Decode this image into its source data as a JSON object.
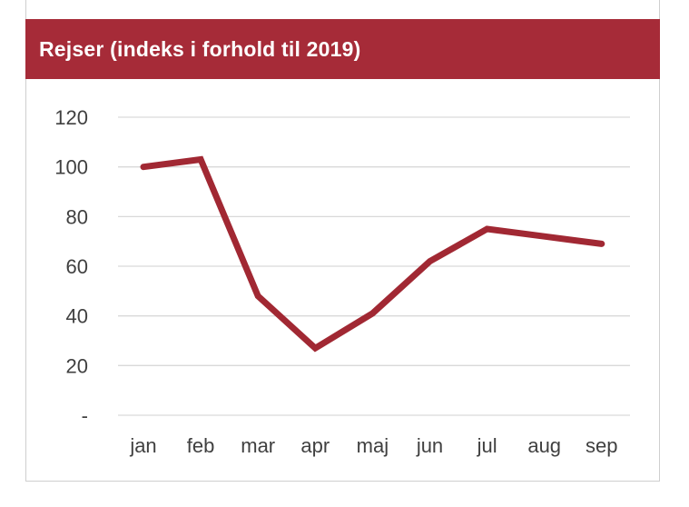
{
  "chart_data": {
    "type": "line",
    "title": "Rejser (indeks i forhold til 2019)",
    "categories": [
      "jan",
      "feb",
      "mar",
      "apr",
      "maj",
      "jun",
      "jul",
      "aug",
      "sep"
    ],
    "values": [
      100,
      103,
      48,
      27,
      41,
      62,
      75,
      72,
      69
    ],
    "series_name": "Rejser (indeks i forhold til 2019)",
    "xlabel": "",
    "ylabel": "",
    "ylim": [
      0,
      120
    ],
    "y_tick_values": [
      120,
      100,
      80,
      60,
      40,
      20,
      0
    ],
    "y_tick_labels": [
      "120",
      "100",
      "80",
      "60",
      "40",
      "20",
      "-"
    ],
    "grid": "horizontal",
    "legend": "none"
  },
  "colors": {
    "header_bg": "#A62B38",
    "title_text": "#FFFFFF",
    "line": "#A12833",
    "gridline": "#D9D9D9",
    "axis_label": "#404040",
    "card_border": "#CFCFCF",
    "background": "#FFFFFF"
  }
}
